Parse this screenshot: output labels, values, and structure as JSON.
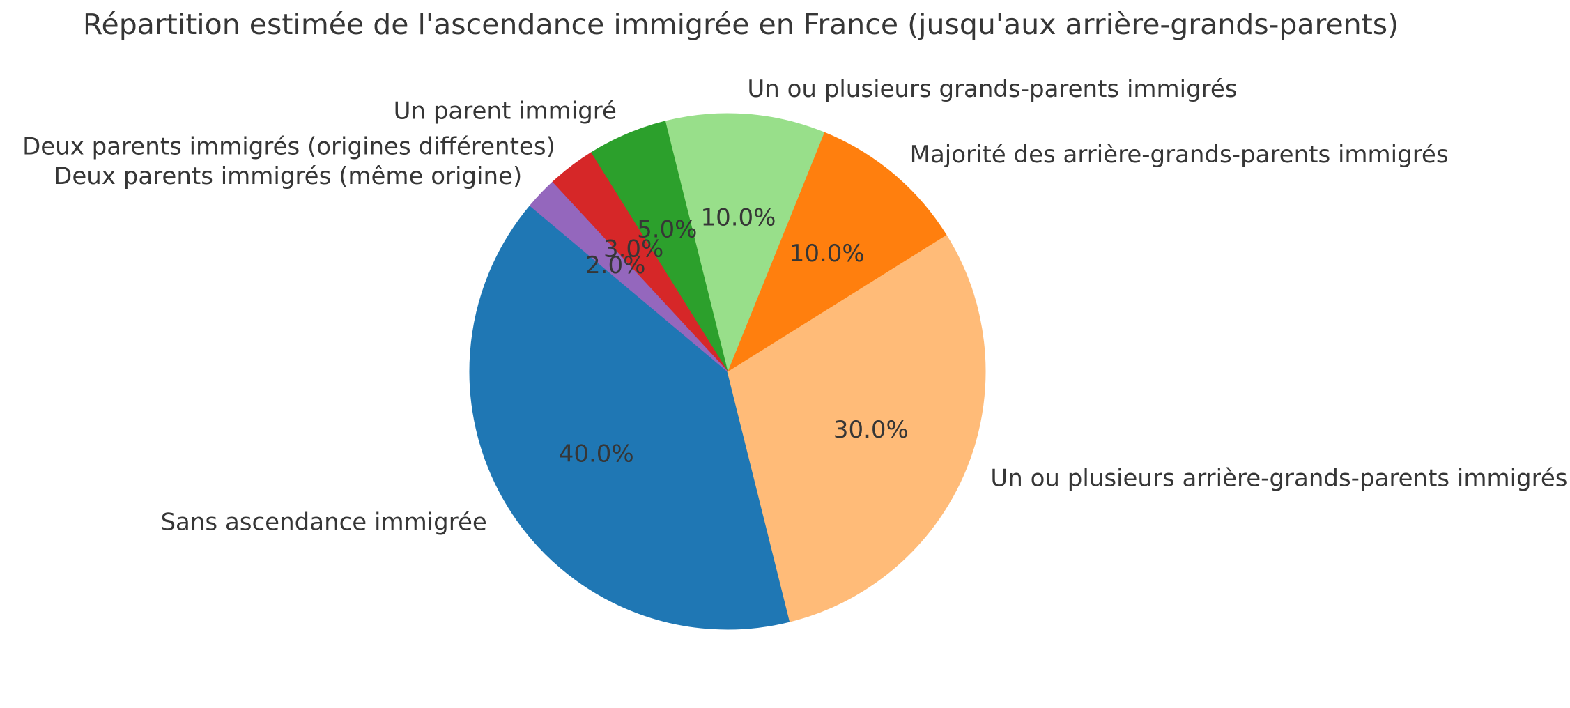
{
  "title": "Répartition estimée de l'ascendance immigrée en France (jusqu'aux arrière-grands-parents)",
  "chart_data": {
    "type": "pie",
    "title": "Répartition estimée de l'ascendance immigrée en France (jusqu'aux arrière-grands-parents)",
    "start_angle_deg": 140,
    "direction": "counterclockwise",
    "label_distance": 1.1,
    "pct_distance": 0.6,
    "text_color": "#363636",
    "legend": "none",
    "slices": [
      {
        "label": "Sans ascendance immigrée",
        "value": 40.0,
        "pct_label": "40.0%",
        "color": "#1f77b4"
      },
      {
        "label": "Un ou plusieurs arrière-grands-parents immigrés",
        "value": 30.0,
        "pct_label": "30.0%",
        "color": "#ffbb78"
      },
      {
        "label": "Majorité des arrière-grands-parents immigrés",
        "value": 10.0,
        "pct_label": "10.0%",
        "color": "#ff7f0e"
      },
      {
        "label": "Un ou plusieurs grands-parents immigrés",
        "value": 10.0,
        "pct_label": "10.0%",
        "color": "#98df8a"
      },
      {
        "label": "Un parent immigré",
        "value": 5.0,
        "pct_label": "5.0%",
        "color": "#2ca02c"
      },
      {
        "label": "Deux parents immigrés (origines différentes)",
        "value": 3.0,
        "pct_label": "3.0%",
        "color": "#d62728"
      },
      {
        "label": "Deux parents immigrés (même origine)",
        "value": 2.0,
        "pct_label": "2.0%",
        "color": "#9467bd"
      }
    ]
  }
}
